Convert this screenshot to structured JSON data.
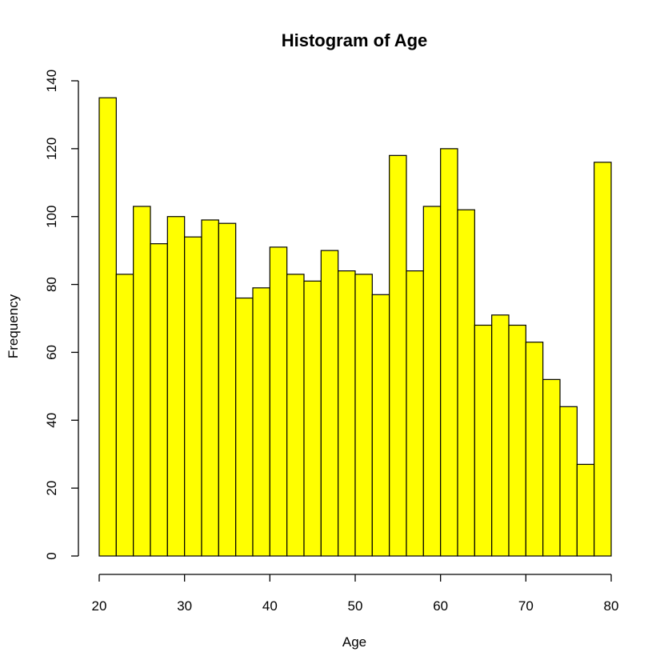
{
  "chart_data": {
    "type": "bar",
    "title": "Histogram of Age",
    "xlabel": "Age",
    "ylabel": "Frequency",
    "bar_color": "#FFFF00",
    "xlim": [
      20,
      80
    ],
    "ylim": [
      0,
      140
    ],
    "xticks": [
      20,
      30,
      40,
      50,
      60,
      70,
      80
    ],
    "yticks": [
      0,
      20,
      40,
      60,
      80,
      100,
      120,
      140
    ],
    "bins": [
      {
        "x0": 20,
        "x1": 22,
        "value": 135
      },
      {
        "x0": 22,
        "x1": 24,
        "value": 83
      },
      {
        "x0": 24,
        "x1": 26,
        "value": 103
      },
      {
        "x0": 26,
        "x1": 28,
        "value": 92
      },
      {
        "x0": 28,
        "x1": 30,
        "value": 100
      },
      {
        "x0": 30,
        "x1": 32,
        "value": 94
      },
      {
        "x0": 32,
        "x1": 34,
        "value": 99
      },
      {
        "x0": 34,
        "x1": 36,
        "value": 98
      },
      {
        "x0": 36,
        "x1": 38,
        "value": 76
      },
      {
        "x0": 38,
        "x1": 40,
        "value": 79
      },
      {
        "x0": 40,
        "x1": 42,
        "value": 91
      },
      {
        "x0": 42,
        "x1": 44,
        "value": 83
      },
      {
        "x0": 44,
        "x1": 46,
        "value": 81
      },
      {
        "x0": 46,
        "x1": 48,
        "value": 90
      },
      {
        "x0": 48,
        "x1": 50,
        "value": 84
      },
      {
        "x0": 50,
        "x1": 52,
        "value": 83
      },
      {
        "x0": 52,
        "x1": 54,
        "value": 77
      },
      {
        "x0": 54,
        "x1": 56,
        "value": 118
      },
      {
        "x0": 56,
        "x1": 58,
        "value": 84
      },
      {
        "x0": 58,
        "x1": 60,
        "value": 103
      },
      {
        "x0": 60,
        "x1": 62,
        "value": 120
      },
      {
        "x0": 62,
        "x1": 64,
        "value": 102
      },
      {
        "x0": 64,
        "x1": 66,
        "value": 68
      },
      {
        "x0": 66,
        "x1": 68,
        "value": 71
      },
      {
        "x0": 68,
        "x1": 70,
        "value": 68
      },
      {
        "x0": 70,
        "x1": 72,
        "value": 63
      },
      {
        "x0": 72,
        "x1": 74,
        "value": 52
      },
      {
        "x0": 74,
        "x1": 76,
        "value": 44
      },
      {
        "x0": 76,
        "x1": 78,
        "value": 27
      },
      {
        "x0": 78,
        "x1": 80,
        "value": 116
      }
    ]
  }
}
